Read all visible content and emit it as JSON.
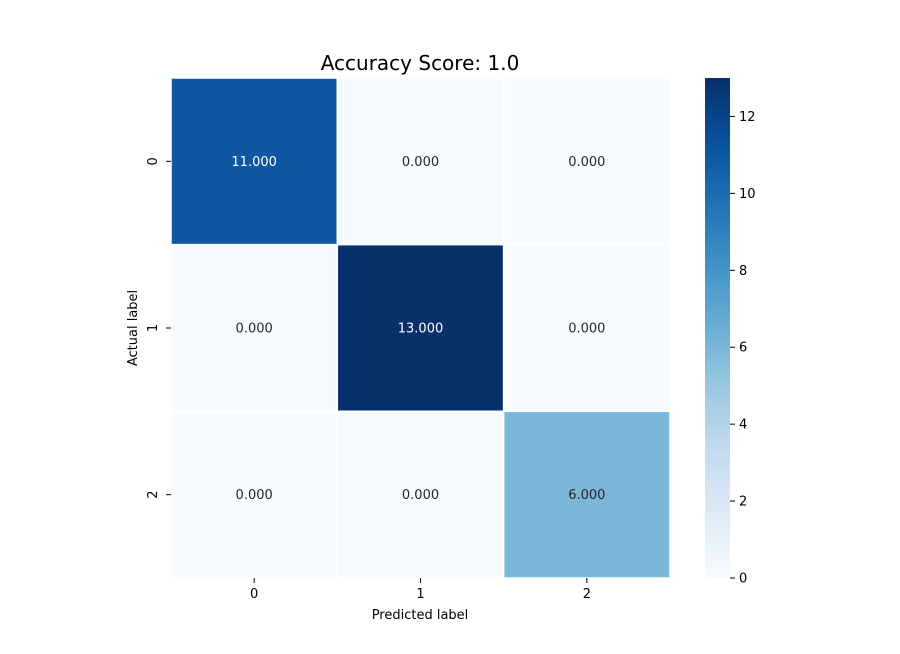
{
  "chart_data": {
    "type": "heatmap",
    "title": "Accuracy Score: 1.0",
    "xlabel": "Predicted label",
    "ylabel": "Actual label",
    "x_categories": [
      "0",
      "1",
      "2"
    ],
    "y_categories": [
      "0",
      "1",
      "2"
    ],
    "values": [
      [
        11,
        0,
        0
      ],
      [
        0,
        13,
        0
      ],
      [
        0,
        0,
        6
      ]
    ],
    "cell_labels": [
      [
        "11.000",
        "0.000",
        "0.000"
      ],
      [
        "0.000",
        "13.000",
        "0.000"
      ],
      [
        "0.000",
        "0.000",
        "6.000"
      ]
    ],
    "colormap": "Blues",
    "colorbar": {
      "range": [
        0,
        13
      ],
      "ticks": [
        0,
        2,
        4,
        6,
        8,
        10,
        12
      ],
      "tick_labels": [
        "0",
        "2",
        "4",
        "6",
        "8",
        "10",
        "12"
      ]
    },
    "colors": {
      "low": "#f7fbff",
      "high": "#08306b",
      "cell_border": "#ffffff"
    }
  }
}
